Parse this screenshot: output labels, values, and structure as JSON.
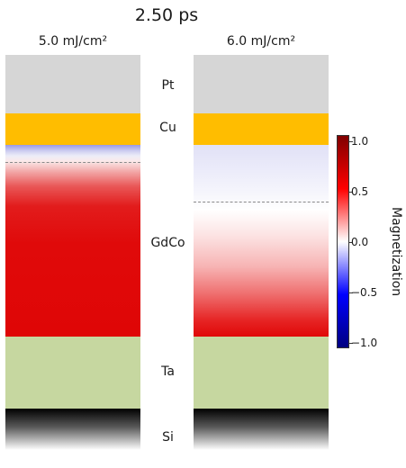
{
  "title": "2.50 ps",
  "panels": [
    {
      "title": "5.0 mJ/cm²"
    },
    {
      "title": "6.0 mJ/cm²"
    }
  ],
  "layers": {
    "pt": "Pt",
    "cu": "Cu",
    "gdco": "GdCo",
    "ta": "Ta",
    "si": "Si"
  },
  "colors": {
    "pt": "#d6d6d6",
    "cu": "#ffbd00",
    "ta": "#c6d7a0",
    "magnetization_positive": "#ff0000",
    "magnetization_negative": "#0000ff"
  },
  "colorbar": {
    "label": "Magnetization",
    "ticks": [
      "1.0",
      "0.5",
      "0.0",
      "−0.5",
      "−1.0"
    ]
  }
}
